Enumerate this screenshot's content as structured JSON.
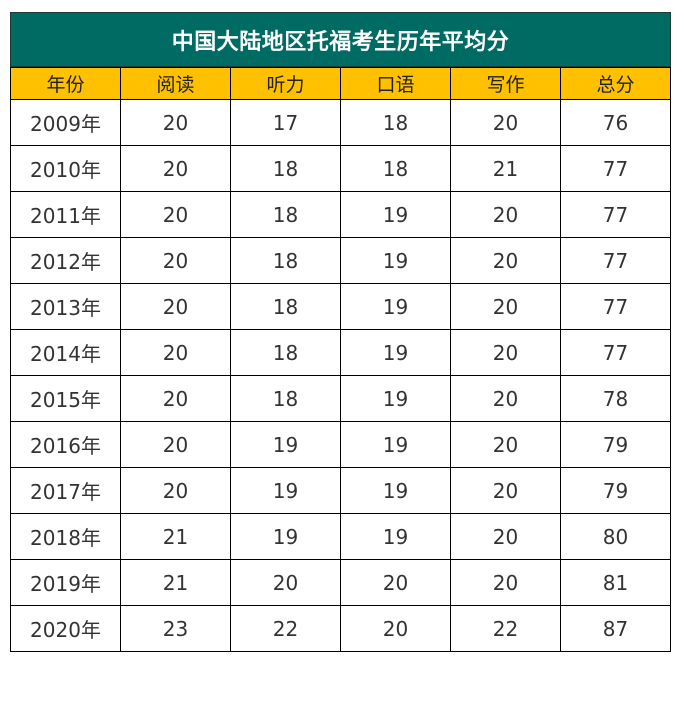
{
  "chart_data": {
    "type": "table",
    "title": "中国大陆地区托福考生历年平均分",
    "columns": [
      "年份",
      "阅读",
      "听力",
      "口语",
      "写作",
      "总分"
    ],
    "rows": [
      [
        "2009年",
        "20",
        "17",
        "18",
        "20",
        "76"
      ],
      [
        "2010年",
        "20",
        "18",
        "18",
        "21",
        "77"
      ],
      [
        "2011年",
        "20",
        "18",
        "19",
        "20",
        "77"
      ],
      [
        "2012年",
        "20",
        "18",
        "19",
        "20",
        "77"
      ],
      [
        "2013年",
        "20",
        "18",
        "19",
        "20",
        "77"
      ],
      [
        "2014年",
        "20",
        "18",
        "19",
        "20",
        "77"
      ],
      [
        "2015年",
        "20",
        "18",
        "19",
        "20",
        "78"
      ],
      [
        "2016年",
        "20",
        "19",
        "19",
        "20",
        "79"
      ],
      [
        "2017年",
        "20",
        "19",
        "19",
        "20",
        "79"
      ],
      [
        "2018年",
        "21",
        "19",
        "19",
        "20",
        "80"
      ],
      [
        "2019年",
        "21",
        "20",
        "20",
        "20",
        "81"
      ],
      [
        "2020年",
        "23",
        "22",
        "20",
        "22",
        "87"
      ]
    ]
  },
  "colors": {
    "title_background": "#006b63",
    "header_background": "#ffc000",
    "border": "#000000"
  }
}
